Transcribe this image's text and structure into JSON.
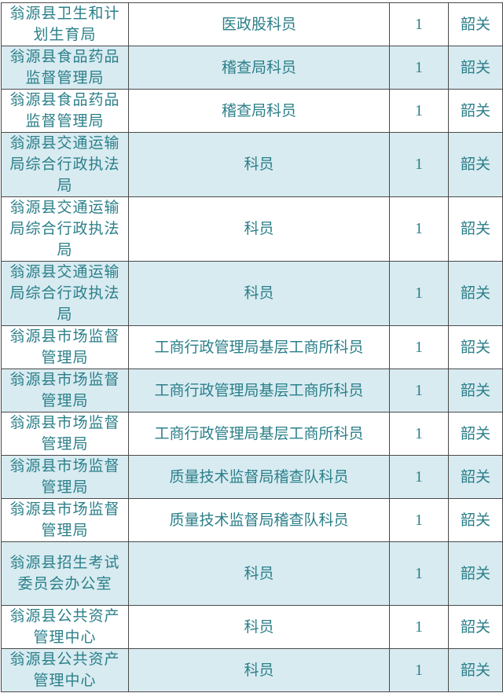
{
  "table": {
    "rows": [
      {
        "org": "翁源县卫生和计划生育局",
        "position": "医政股科员",
        "count": "1",
        "location": "韶关",
        "lines": 2
      },
      {
        "org": "翁源县食品药品监督管理局",
        "position": "稽查局科员",
        "count": "1",
        "location": "韶关",
        "lines": 2
      },
      {
        "org": "翁源县食品药品监督管理局",
        "position": "稽查局科员",
        "count": "1",
        "location": "韶关",
        "lines": 2
      },
      {
        "org": "翁源县交通运输局综合行政执法局",
        "position": "科员",
        "count": "1",
        "location": "韶关",
        "lines": 3
      },
      {
        "org": "翁源县交通运输局综合行政执法局",
        "position": "科员",
        "count": "1",
        "location": "韶关",
        "lines": 3
      },
      {
        "org": "翁源县交通运输局综合行政执法局",
        "position": "科员",
        "count": "1",
        "location": "韶关",
        "lines": 3
      },
      {
        "org": "翁源县市场监督管理局",
        "position": "工商行政管理局基层工商所科员",
        "count": "1",
        "location": "韶关",
        "lines": 2
      },
      {
        "org": "翁源县市场监督管理局",
        "position": "工商行政管理局基层工商所科员",
        "count": "1",
        "location": "韶关",
        "lines": 2
      },
      {
        "org": "翁源县市场监督管理局",
        "position": "工商行政管理局基层工商所科员",
        "count": "1",
        "location": "韶关",
        "lines": 2
      },
      {
        "org": "翁源县市场监督管理局",
        "position": "质量技术监督局稽查队科员",
        "count": "1",
        "location": "韶关",
        "lines": 2
      },
      {
        "org": "翁源县市场监督管理局",
        "position": "质量技术监督局稽查队科员",
        "count": "1",
        "location": "韶关",
        "lines": 2
      },
      {
        "org": "翁源县招生考试委员会办公室",
        "position": "科员",
        "count": "1",
        "location": "韶关",
        "lines": 3
      },
      {
        "org": "翁源县公共资产管理中心",
        "position": "科员",
        "count": "1",
        "location": "韶关",
        "lines": 2
      },
      {
        "org": "翁源县公共资产管理中心",
        "position": "科员",
        "count": "1",
        "location": "韶关",
        "lines": 2
      }
    ]
  },
  "colors": {
    "text": "#2b7f89",
    "alt_row": "#d8ebf1",
    "border": "#4a4a4a"
  }
}
